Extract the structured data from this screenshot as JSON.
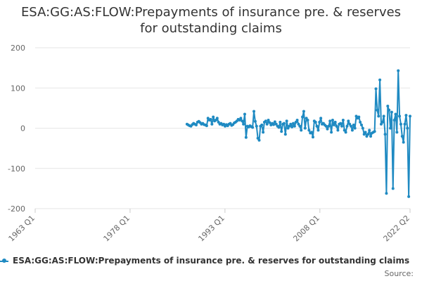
{
  "chart_data": {
    "type": "line",
    "title_line1": "ESA:GG:AS:FLOW:Prepayments of insurance pre. & reserves",
    "title_line2": "for outstanding claims",
    "x_tick_labels": [
      "1963 Q1",
      "1978 Q1",
      "1993 Q1",
      "2008 Q1",
      "2022 Q2"
    ],
    "x_tick_years": [
      1963.0,
      1978.0,
      1993.0,
      2008.0,
      2022.25
    ],
    "xlim": [
      1963.0,
      2022.25
    ],
    "y_tick_labels": [
      "-200",
      "-100",
      "0",
      "100",
      "200"
    ],
    "y_ticks": [
      -200,
      -100,
      0,
      100,
      200
    ],
    "ylim": [
      -200,
      200
    ],
    "grid": "horizontal",
    "legend_position": "bottom",
    "series": [
      {
        "name": "ESA:GG:AS:FLOW:Prepayments of insurance pre. & reserves for outstanding claims",
        "color": "#1f8ac2",
        "start": "1987 Q1",
        "values": [
          10,
          8,
          6,
          5,
          9,
          12,
          10,
          8,
          15,
          17,
          14,
          10,
          12,
          9,
          8,
          6,
          25,
          20,
          22,
          10,
          28,
          18,
          20,
          25,
          15,
          10,
          12,
          8,
          10,
          5,
          9,
          6,
          10,
          12,
          7,
          9,
          13,
          15,
          18,
          22,
          20,
          25,
          18,
          10,
          35,
          -23,
          5,
          3,
          6,
          4,
          2,
          42,
          17,
          5,
          -25,
          -30,
          5,
          8,
          -10,
          15,
          18,
          10,
          20,
          14,
          8,
          12,
          9,
          16,
          10,
          5,
          2,
          15,
          -8,
          10,
          12,
          -15,
          18,
          0,
          5,
          10,
          3,
          12,
          5,
          15,
          20,
          10,
          5,
          -5,
          28,
          42,
          0,
          25,
          20,
          -5,
          -12,
          -10,
          -22,
          18,
          15,
          5,
          -5,
          15,
          25,
          10,
          12,
          8,
          5,
          -2,
          5,
          18,
          -10,
          20,
          8,
          15,
          5,
          -5,
          10,
          12,
          5,
          20,
          -5,
          -10,
          5,
          18,
          10,
          5,
          -5,
          8,
          0,
          30,
          25,
          28,
          15,
          8,
          0,
          -15,
          -10,
          -20,
          -15,
          -5,
          -20,
          -12,
          -10,
          -8,
          98,
          45,
          30,
          120,
          10,
          15,
          30,
          -15,
          -162,
          55,
          45,
          0,
          40,
          -150,
          20,
          35,
          -10,
          143,
          30,
          10,
          -20,
          -35,
          10,
          32,
          0,
          -170,
          30
        ]
      }
    ],
    "source_label": "Source:"
  }
}
